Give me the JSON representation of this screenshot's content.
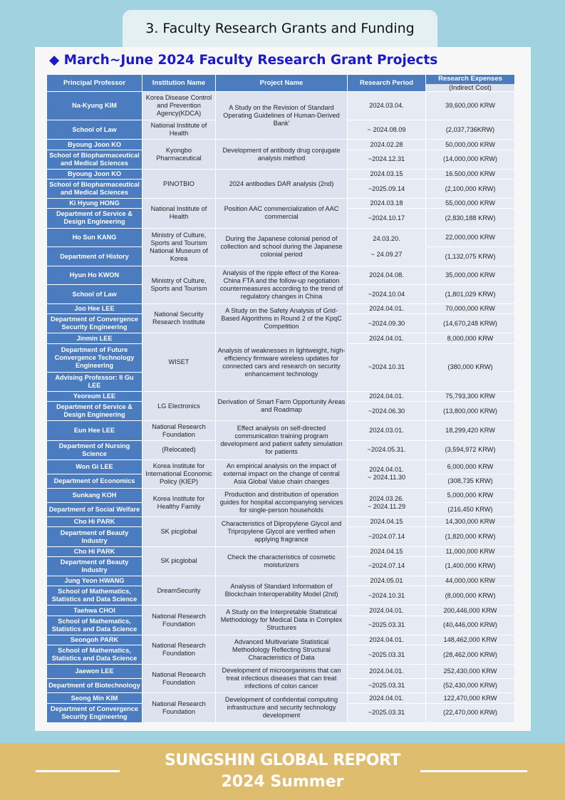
{
  "header": {
    "tab": "3. Faculty Research Grants and Funding",
    "title": "◆ March~June 2024 Faculty Research Grant Projects"
  },
  "table": {
    "columns": [
      "Principal Professor",
      "Institution Name",
      "Project Name",
      "Research Period",
      "Research Expenses"
    ],
    "expense_note": "(Indirect Cost)",
    "projects": [
      {
        "professor": [
          "Na-Kyung KIM",
          "School of Law"
        ],
        "institution": [
          "Korea Disease Control and Prevention Agency(KDCA)",
          "National Institute of Health"
        ],
        "project": "A Study on the Revision of Standard Operating Guidelines of Human-Derived Bank'",
        "period": [
          "2024.03.04.",
          "~ 2024.08.09"
        ],
        "expense": [
          "39,600,000 KRW",
          "(2,037,736KRW)"
        ]
      },
      {
        "professor": [
          "Byoung Joon KO",
          "School of Biopharmaceutical and Medical Sciences"
        ],
        "institution": [
          "Kyongbo Pharmaceutical"
        ],
        "project": "Development of antibody drug conjugate analysis method",
        "period": [
          "2024.02.28",
          "~2024.12.31"
        ],
        "expense": [
          "50,000,000 KRW",
          "(14,000,000 KRW)"
        ]
      },
      {
        "professor": [
          "Byoung Joon KO",
          "School of Biopharmaceutical and Medical Sciences"
        ],
        "institution": [
          "PINOTBIO"
        ],
        "project": "2024 antibodies DAR analysis (2nd)",
        "period": [
          "2024.03.15",
          "~2025.09.14"
        ],
        "expense": [
          "16.500,000 KRW",
          "(2,100,000 KRW)"
        ]
      },
      {
        "professor": [
          "Ki Hyung HONG",
          "Department of Service & Design Engineering"
        ],
        "institution": [
          "National Institute of Health"
        ],
        "project": "Position AAC commercialization of AAC commercial",
        "period": [
          "2024.03.18",
          "~2024.10.17"
        ],
        "expense": [
          "55,000,000 KRW",
          "(2,830,188 KRW)"
        ]
      },
      {
        "professor": [
          "Ho Sun KANG",
          "Department of History"
        ],
        "institution": [
          "Ministry of Culture, Sports and Tourism National Museum of Korea"
        ],
        "project": "During the Japanese colonial period of collection and school during the Japanese colonial period",
        "period": [
          "24.03.20.\n\n~ 24.09.27"
        ],
        "expense": [
          "22,000,000 KRW",
          "(1,132,075 KRW)"
        ]
      },
      {
        "professor": [
          "Hyun Ho KWON",
          "School of Law"
        ],
        "institution": [
          "Ministry of Culture, Sports and Tourism"
        ],
        "project": "Analysis of the ripple effect of the Korea-China FTA and the follow-up negotiation countermeasures according to the trend of regulatory changes in China",
        "period": [
          "2024.04.08.",
          "~2024.10.04"
        ],
        "expense": [
          "35,000,000 KRW",
          "(1,801,029 KRW)"
        ]
      },
      {
        "professor": [
          "Joo Hee LEE",
          "Department of Convergence Security Engineering"
        ],
        "institution": [
          "National Security Research Institute"
        ],
        "project": "A Study on the Safety Analysis of Grid-Based Algorithms in Round 2 of the KpqC Competition",
        "period": [
          "2024.04.01.",
          "~2024.09.30"
        ],
        "expense": [
          "70,000,000 KRW",
          "(14,670,248 KRW)"
        ]
      },
      {
        "professor": [
          "Jinmin LEE",
          "Department of Future Convergence Technology Engineering",
          "Advising Professor: Il Gu LEE"
        ],
        "institution": [
          "WISET"
        ],
        "project": "Analysis of weaknesses in lightweight, high-efficiency firmware wireless updates for connected cars and research on security enhancement technology",
        "period": [
          "2024.04.01.",
          "~2024.10.31"
        ],
        "expense": [
          "8,000,000 KRW",
          "(380,000 KRW)"
        ]
      },
      {
        "professor": [
          "Yeoreum LEE",
          "Department of Service & Design Engineering"
        ],
        "institution": [
          "LG Electronics"
        ],
        "project": "Derivation of Smart Farm Opportunity Areas and Roadmap",
        "period": [
          "2024.04.01.",
          "~2024.06.30"
        ],
        "expense": [
          "75,793,300 KRW",
          "(13,800,000 KRW)"
        ]
      },
      {
        "professor": [
          "Eun Hee LEE",
          "Department of Nursing Science"
        ],
        "institution": [
          "National Research Foundation",
          "(Relocated)"
        ],
        "project": "Effect analysis on self-directed communication training program development and patient safety simulation for patients",
        "period": [
          "2024.03.01.",
          "~2024.05.31."
        ],
        "expense": [
          "18,299,420 KRW",
          "(3,594,972 KRW)"
        ]
      },
      {
        "professor": [
          "Won Gi LEE",
          "Department of Economics"
        ],
        "institution": [
          "Korea Institute for International Economic Policy (KIEP)"
        ],
        "project": "An empirical analysis on the impact of external impact on the change of central Asia Global Value chain changes",
        "period": [
          "2024.04.01.\n~ 2024.11.30"
        ],
        "expense": [
          "6,000,000 KRW",
          "(308,735 KRW)"
        ]
      },
      {
        "professor": [
          "Sunkang KOH",
          "Department of Social Welfare"
        ],
        "institution": [
          "Korea Institute for Healthy Family"
        ],
        "project": "Production and distribution of operation guides for hospital accompanying services for single-person households",
        "period": [
          "2024.03.26.\n~ 2024.11.29"
        ],
        "expense": [
          "5,000,000 KRW",
          "(216,450 KRW)"
        ]
      },
      {
        "professor": [
          "Cho Hi PARK",
          "Department of Beauty Industry"
        ],
        "institution": [
          "SK picglobal"
        ],
        "project": "Characteristics of Dipropylene Glycol and Tripropylene Glycol are verified when applying fragrance",
        "period": [
          "2024.04.15",
          "~2024.07.14"
        ],
        "expense": [
          "14,300,000 KRW",
          "(1,820,000 KRW)"
        ]
      },
      {
        "professor": [
          "Cho Hi PARK",
          "Department of Beauty Industry"
        ],
        "institution": [
          "SK picglobal"
        ],
        "project": "Check the characteristics of cosmetic moisturizers",
        "period": [
          "2024.04.15",
          "~2024.07.14"
        ],
        "expense": [
          "11,000,000 KRW",
          "(1,400,000 KRW)"
        ]
      },
      {
        "professor": [
          "Jung Yeon HWANG",
          "School of Mathematics, Statistics and Data Science"
        ],
        "institution": [
          "DreamSecurity"
        ],
        "project": "Analysis of Standard Information of Blockchain Interoperability Model (2nd)",
        "period": [
          "2024.05.01",
          "~2024.10.31"
        ],
        "expense": [
          "44,000,000 KRW",
          "(8,000,000 KRW)"
        ]
      },
      {
        "professor": [
          "Taehwa CHOI",
          "School of Mathematics, Statistics and Data Science"
        ],
        "institution": [
          "National Research Foundation"
        ],
        "project": "A Study on the Interpretable Statistical Methodology for Medical Data in Complex Structures",
        "period": [
          "2024.04.01.",
          "~2025.03.31"
        ],
        "expense": [
          "200,446,000 KRW",
          "(40,446,000 KRW)"
        ]
      },
      {
        "professor": [
          "Seongoh PARK",
          "School of Mathematics, Statistics and Data Science"
        ],
        "institution": [
          "National Research Foundation"
        ],
        "project": "Advanced Multivariate Statistical Methodology Reflecting Structural Characteristics of Data",
        "period": [
          "2024.04.01.",
          "~2025.03.31"
        ],
        "expense": [
          "148,462,000 KRW",
          "(28,462,000 KRW)"
        ]
      },
      {
        "professor": [
          "Jaewon LEE",
          "Department of Biotechnology"
        ],
        "institution": [
          "National Research Foundation"
        ],
        "project": "Development of microorganisms that can treat infectious diseases that can treat infections of colon cancer",
        "period": [
          "2024.04.01.",
          "~2025.03.31"
        ],
        "expense": [
          "252,430,000 KRW",
          "(52,430,000 KRW)"
        ]
      },
      {
        "professor": [
          "Seong Min KIM",
          "Department of Convergence Security Engineering"
        ],
        "institution": [
          "National Research Foundation"
        ],
        "project": "Development of confidential computing infrastructure and security technology development",
        "period": [
          "2024.04.01.",
          "~2025.03.31"
        ],
        "expense": [
          "122,470,000 KRW",
          "(22,470,000 KRW)"
        ]
      }
    ]
  },
  "footer": {
    "title": "SUNGSHIN GLOBAL REPORT",
    "subtitle": "2024 Summer"
  }
}
